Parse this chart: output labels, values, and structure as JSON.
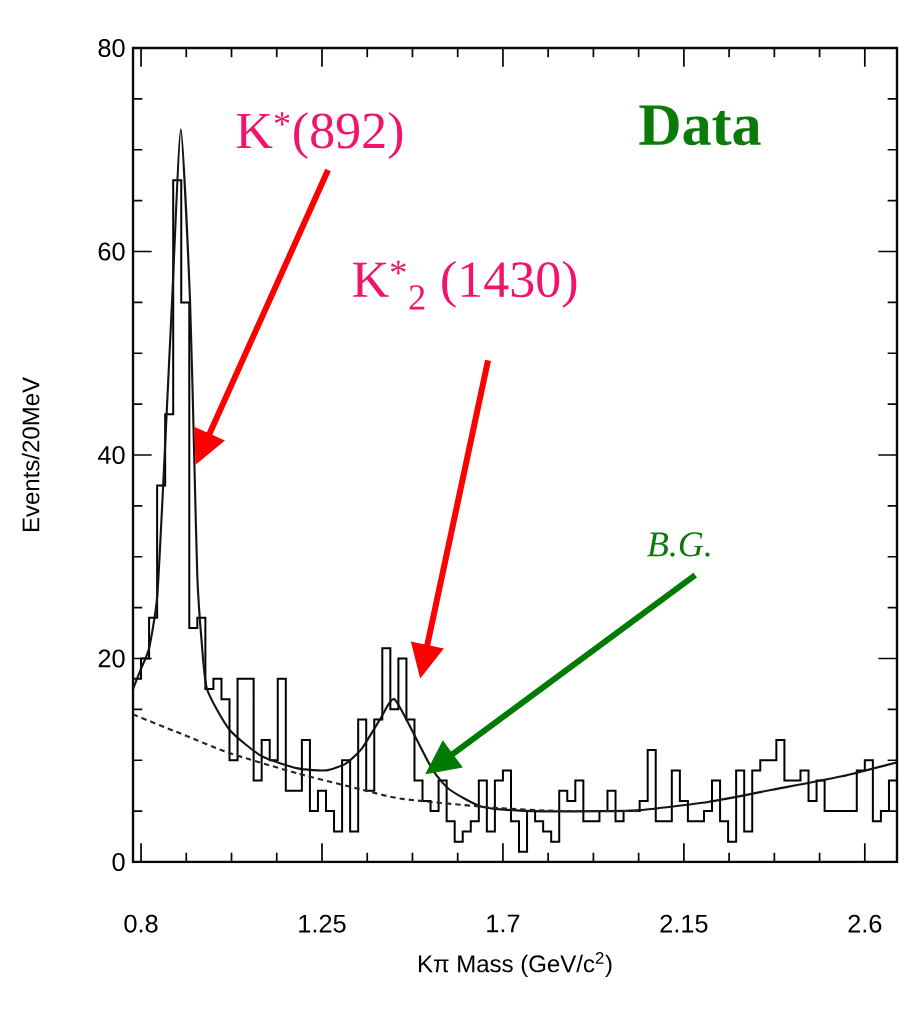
{
  "chart_data": {
    "type": "histogram",
    "xlabel": "Kπ Mass (GeV/c$^{2}$)",
    "ylabel": "Events/20MeV",
    "bins": [
      0.78,
      0.8,
      0.82,
      0.84,
      0.86,
      0.88,
      0.9,
      0.92,
      0.94,
      0.96,
      0.98,
      1,
      1.02,
      1.04,
      1.06,
      1.08,
      1.1,
      1.12,
      1.14,
      1.16,
      1.18,
      1.2,
      1.22,
      1.24,
      1.26,
      1.28,
      1.3,
      1.32,
      1.34,
      1.36,
      1.38,
      1.4,
      1.42,
      1.44,
      1.46,
      1.48,
      1.5,
      1.52,
      1.54,
      1.56,
      1.58,
      1.6,
      1.62,
      1.64,
      1.66,
      1.68,
      1.7,
      1.72,
      1.74,
      1.76,
      1.78,
      1.8,
      1.82,
      1.84,
      1.86,
      1.88,
      1.9,
      1.92,
      1.94,
      1.96,
      1.98,
      2,
      2.02,
      2.04,
      2.06,
      2.08,
      2.1,
      2.12,
      2.14,
      2.16,
      2.18,
      2.2,
      2.22,
      2.24,
      2.26,
      2.28,
      2.3,
      2.32,
      2.34,
      2.36,
      2.38,
      2.4,
      2.42,
      2.44,
      2.46,
      2.48,
      2.5,
      2.52,
      2.54,
      2.56,
      2.58,
      2.6,
      2.62,
      2.64,
      2.66,
      2.68
    ],
    "values": [
      18,
      20,
      24,
      37,
      44,
      67,
      55,
      23,
      24,
      17,
      18,
      16,
      10,
      18,
      18,
      8,
      12,
      10,
      18,
      7,
      7,
      12,
      5,
      7,
      5,
      3,
      10,
      3,
      14,
      7,
      14,
      21,
      15,
      20,
      14,
      8,
      6,
      5,
      8,
      4,
      2,
      3,
      4,
      8,
      3,
      8,
      9,
      4,
      1,
      5,
      4,
      3,
      2,
      7,
      6,
      8,
      4,
      4,
      5,
      7,
      4,
      5,
      5,
      6,
      11,
      4,
      4,
      9,
      6,
      4,
      4,
      5,
      8,
      4,
      2,
      9,
      3,
      9,
      10,
      10,
      12,
      8,
      8,
      9,
      6,
      8,
      5,
      5,
      5,
      5,
      9,
      10,
      4,
      5,
      8
    ],
    "color": "#000000",
    "series": [
      {
        "type": "line",
        "line_style": "solid",
        "color": "#141414",
        "x": [
          0.78,
          0.8,
          0.82,
          0.84,
          0.855,
          0.877,
          0.899,
          0.922,
          0.934,
          0.94,
          0.95,
          0.964,
          1.02,
          1.1,
          1.19,
          1.26,
          1.31,
          1.35,
          1.394,
          1.43,
          1.486,
          1.526,
          1.568,
          1.65,
          1.775,
          1.94,
          2.04,
          2.21,
          2.37,
          2.54,
          2.68
        ],
        "values": [
          17,
          19,
          21,
          26,
          37,
          55,
          72,
          55,
          37,
          28,
          22,
          17,
          13,
          10.4,
          9.2,
          9,
          9.7,
          11.2,
          14,
          16,
          12,
          9,
          7.1,
          5.4,
          5,
          5,
          5.1,
          5.9,
          7.1,
          8.4,
          9.8
        ]
      },
      {
        "type": "line",
        "line_style": "dashed",
        "color": "#262626",
        "x": [
          0.78,
          0.9,
          1.02,
          1.19,
          1.35,
          1.45,
          1.69,
          1.85,
          2.04
        ],
        "values": [
          14.5,
          12.6,
          10.7,
          8.7,
          7.1,
          6.2,
          5.3,
          5,
          5
        ]
      }
    ],
    "xlim": [
      0.78,
      2.68
    ],
    "ylim": [
      0,
      80
    ],
    "xticks": [
      0.8,
      1.25,
      1.7,
      2.15,
      2.6
    ],
    "yticks": [
      0,
      20,
      40,
      60,
      80
    ],
    "annotations": [
      "K$^{*}$(892)",
      "K$^{*}$$_{2}$ (1430)",
      "B.G.",
      "Data"
    ]
  }
}
